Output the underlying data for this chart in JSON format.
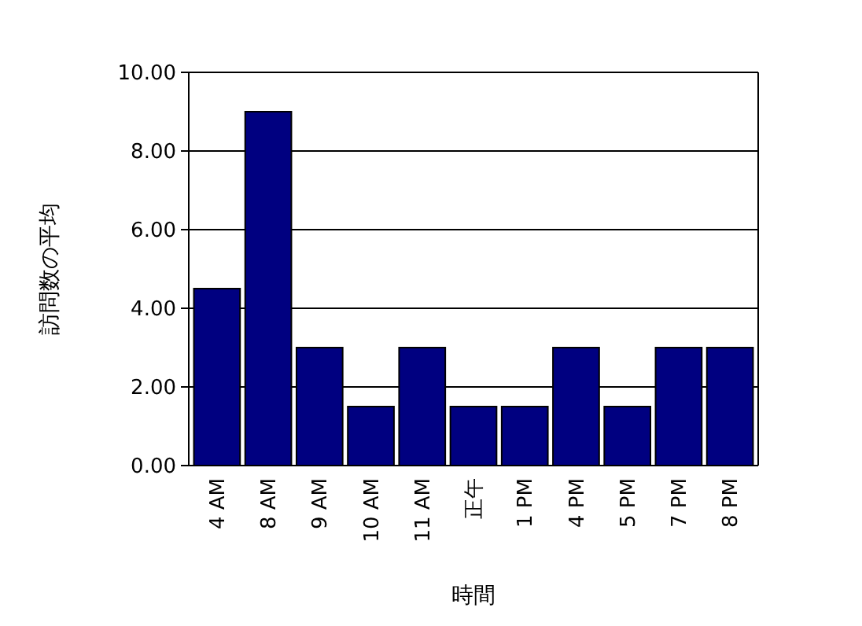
{
  "chart_data": {
    "type": "bar",
    "xlabel": "時間",
    "ylabel": "訪問数の平均",
    "categories": [
      "4 AM",
      "8 AM",
      "9 AM",
      "10 AM",
      "11 AM",
      "正午",
      "1 PM",
      "4 PM",
      "5 PM",
      "7 PM",
      "8 PM"
    ],
    "values": [
      4.5,
      9.0,
      3.0,
      1.5,
      3.0,
      1.5,
      1.5,
      3.0,
      1.5,
      3.0,
      3.0
    ],
    "color": "#000080",
    "ylim": [
      0,
      10
    ],
    "yticks": [
      {
        "value": 0,
        "label": "0.00"
      },
      {
        "value": 2,
        "label": "2.00"
      },
      {
        "value": 4,
        "label": "4.00"
      },
      {
        "value": 6,
        "label": "6.00"
      },
      {
        "value": 8,
        "label": "8.00"
      },
      {
        "value": 10,
        "label": "10.00"
      }
    ],
    "grid": "y"
  }
}
